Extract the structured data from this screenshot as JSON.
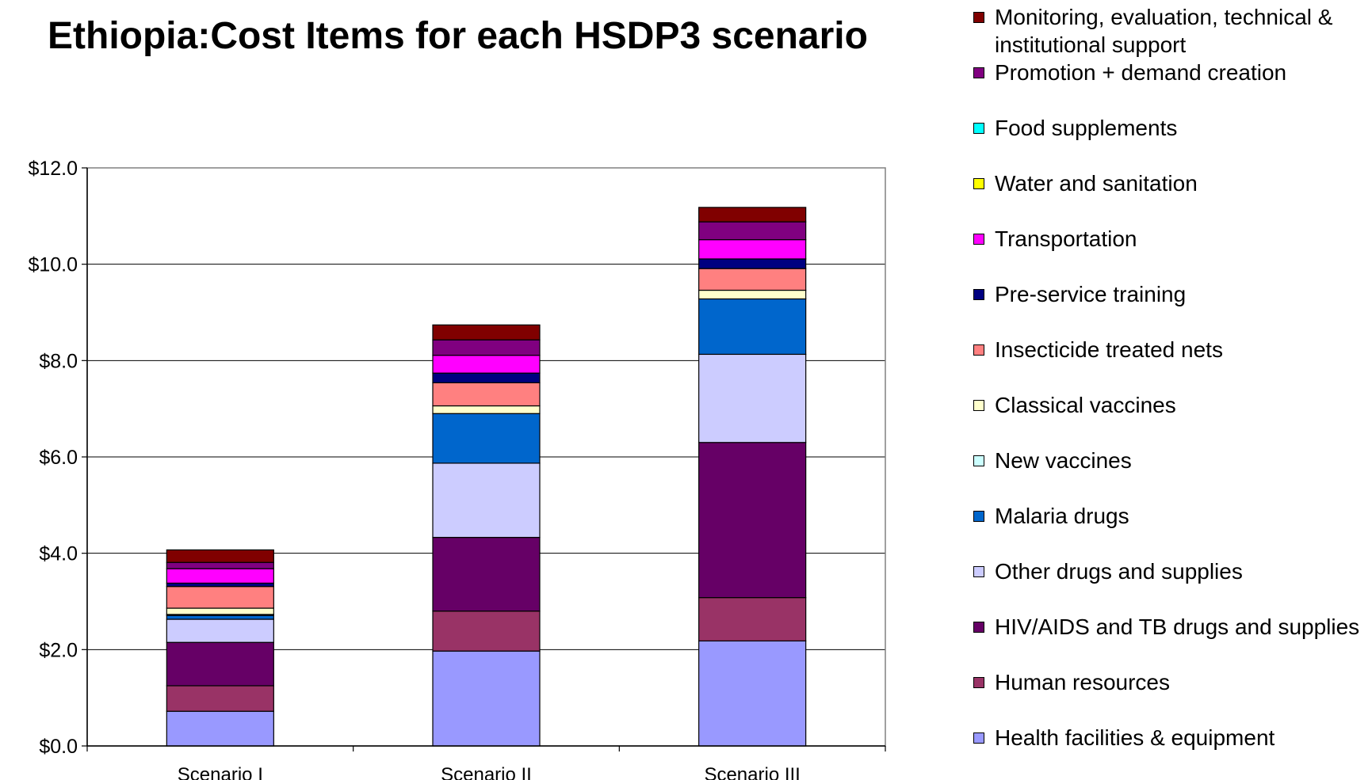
{
  "chart_data": {
    "type": "bar",
    "stacked": true,
    "title": "Ethiopia:Cost Items for each HSDP3 scenario",
    "categories": [
      "Scenario I",
      "Scenario II",
      "Scenario III"
    ],
    "ylim": [
      0,
      12
    ],
    "yticks": [
      0,
      2,
      4,
      6,
      8,
      10,
      12
    ],
    "ytick_labels": [
      "$0.0",
      "$2.0",
      "$4.0",
      "$6.0",
      "$8.0",
      "$10.0",
      "$12.0"
    ],
    "grid": true,
    "legend_position": "right",
    "series": [
      {
        "name": "Health facilities & equipment",
        "color": "#9999FF",
        "values": [
          0.72,
          1.97,
          2.18
        ]
      },
      {
        "name": "Human resources",
        "color": "#993366",
        "values": [
          0.53,
          0.83,
          0.9
        ]
      },
      {
        "name": "HIV/AIDS and TB drugs and supplies",
        "color": "#660066",
        "values": [
          0.9,
          1.53,
          3.22
        ]
      },
      {
        "name": "Other drugs and supplies",
        "color": "#CCCCFF",
        "values": [
          0.48,
          1.54,
          1.83
        ]
      },
      {
        "name": "Malaria drugs",
        "color": "#0066CC",
        "values": [
          0.08,
          1.03,
          1.15
        ]
      },
      {
        "name": "New vaccines",
        "color": "#CCFFFF",
        "values": [
          0.02,
          0.0,
          0.0
        ]
      },
      {
        "name": "Classical vaccines",
        "color": "#FFFFCC",
        "values": [
          0.13,
          0.16,
          0.18
        ]
      },
      {
        "name": "Insecticide treated nets",
        "color": "#FF8080",
        "values": [
          0.45,
          0.48,
          0.45
        ]
      },
      {
        "name": "Pre-service training",
        "color": "#000080",
        "values": [
          0.07,
          0.2,
          0.2
        ]
      },
      {
        "name": "Transportation",
        "color": "#FF00FF",
        "values": [
          0.3,
          0.37,
          0.4
        ]
      },
      {
        "name": "Water and sanitation",
        "color": "#FFFF00",
        "values": [
          0.0,
          0.0,
          0.0
        ]
      },
      {
        "name": "Food supplements",
        "color": "#00FFFF",
        "values": [
          0.0,
          0.0,
          0.0
        ]
      },
      {
        "name": "Promotion + demand creation",
        "color": "#800080",
        "values": [
          0.13,
          0.32,
          0.37
        ]
      },
      {
        "name": "Monitoring, evaluation, technical & institutional support",
        "color": "#800000",
        "values": [
          0.26,
          0.31,
          0.3
        ]
      }
    ]
  }
}
